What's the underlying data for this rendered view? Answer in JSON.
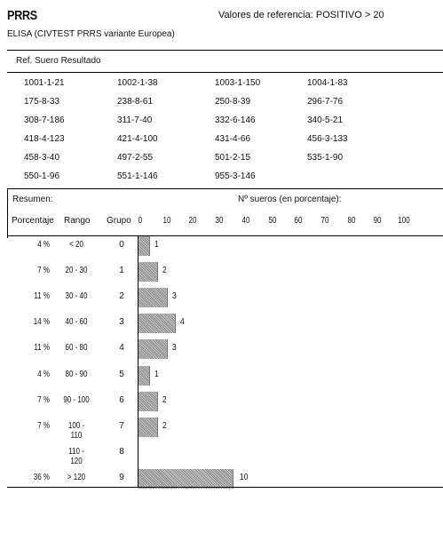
{
  "header": {
    "title": "PRRS",
    "reference": "Valores de referencia: POSITIVO > 20",
    "subtitle": "ELISA (CIVTEST PRRS variante Europea)"
  },
  "results_header": "Ref. Suero Resultado",
  "results": [
    "1001-1-21",
    "1002-1-38",
    "1003-1-150",
    "1004-1-83",
    "175-8-33",
    "238-8-61",
    "250-8-39",
    "296-7-76",
    "308-7-186",
    "311-7-40",
    "332-6-146",
    "340-5-21",
    "418-4-123",
    "421-4-100",
    "431-4-66",
    "456-3-133",
    "458-3-40",
    "497-2-55",
    "501-2-15",
    "535-1-90",
    "550-1-96",
    "551-1-146",
    "955-3-146",
    ""
  ],
  "summary": {
    "label": "Resumen:",
    "chart_title": "Nº sueros (en porcentaje):",
    "col_porcentaje": "Porcentaje",
    "col_rango": "Rango",
    "col_grupo": "Grupo",
    "axis_ticks": [
      "0",
      "10",
      "20",
      "30",
      "40",
      "50",
      "60",
      "70",
      "80",
      "90",
      "100"
    ]
  },
  "chart_data": {
    "type": "bar",
    "orientation": "horizontal",
    "xlim": [
      0,
      100
    ],
    "rows": [
      {
        "porcentaje": "4 %",
        "rango": "< 20",
        "grupo": "0",
        "value": 4,
        "count": "1"
      },
      {
        "porcentaje": "7 %",
        "rango": "20 - 30",
        "grupo": "1",
        "value": 7,
        "count": "2"
      },
      {
        "porcentaje": "11 %",
        "rango": "30 - 40",
        "grupo": "2",
        "value": 11,
        "count": "3"
      },
      {
        "porcentaje": "14 %",
        "rango": "40 - 60",
        "grupo": "3",
        "value": 14,
        "count": "4"
      },
      {
        "porcentaje": "11 %",
        "rango": "60 - 80",
        "grupo": "4",
        "value": 11,
        "count": "3"
      },
      {
        "porcentaje": "4 %",
        "rango": "80 - 90",
        "grupo": "5",
        "value": 4,
        "count": "1"
      },
      {
        "porcentaje": "7 %",
        "rango": "90 - 100",
        "grupo": "6",
        "value": 7,
        "count": "2"
      },
      {
        "porcentaje": "7 %",
        "rango": "100 - 110",
        "grupo": "7",
        "value": 7,
        "count": "2"
      },
      {
        "porcentaje": "",
        "rango": "110 - 120",
        "grupo": "8",
        "value": 0,
        "count": ""
      },
      {
        "porcentaje": "36 %",
        "rango": "> 120",
        "grupo": "9",
        "value": 36,
        "count": "10"
      }
    ]
  }
}
